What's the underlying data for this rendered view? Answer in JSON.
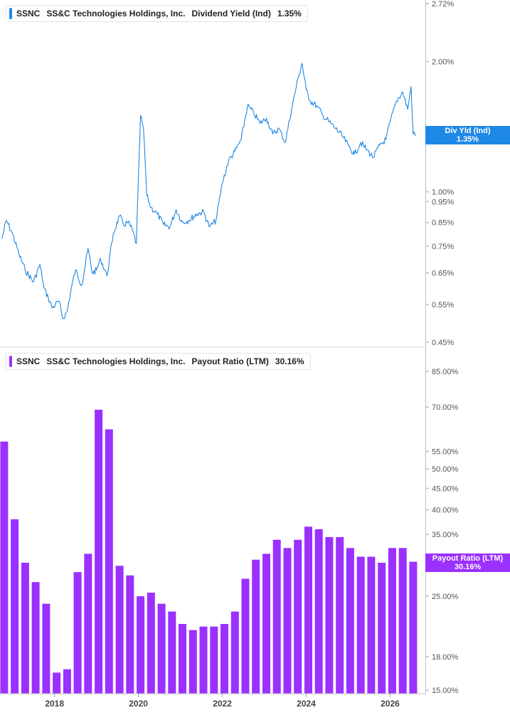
{
  "colors": {
    "yield": "#1e88e5",
    "payout": "#9b30ff",
    "grid": "#d9d9d9",
    "text": "#555555"
  },
  "chart_data": [
    {
      "type": "line",
      "legend": {
        "ticker": "SSNC",
        "company": "SS&C Technologies Holdings, Inc.",
        "metric": "Dividend Yield (Ind)",
        "value": "1.35%"
      },
      "tag": {
        "label": "Div Yld (Ind)",
        "value": "1.35%"
      },
      "y_scale": "log",
      "ylim": [
        0.45,
        2.72
      ],
      "y_ticks": [
        {
          "v": 2.72,
          "label": "2.72%"
        },
        {
          "v": 2.0,
          "label": "2.00%"
        },
        {
          "v": 1.0,
          "label": "1.00%"
        },
        {
          "v": 0.95,
          "label": "0.95%"
        },
        {
          "v": 0.85,
          "label": "0.85%"
        },
        {
          "v": 0.75,
          "label": "0.75%"
        },
        {
          "v": 0.65,
          "label": "0.65%"
        },
        {
          "v": 0.55,
          "label": "0.55%"
        },
        {
          "v": 0.45,
          "label": "0.45%"
        }
      ],
      "series": [
        {
          "x": [
            2016.75,
            2016.85,
            2017.0,
            2017.15,
            2017.3,
            2017.5,
            2017.65,
            2017.75,
            2017.85,
            2017.95,
            2018.1,
            2018.2,
            2018.3,
            2018.4,
            2018.5,
            2018.65,
            2018.8,
            2018.9,
            2019.0,
            2019.1,
            2019.25,
            2019.4,
            2019.55,
            2019.65,
            2019.75,
            2019.85,
            2019.95,
            2020.05,
            2020.12,
            2020.2,
            2020.3,
            2020.45,
            2020.6,
            2020.75,
            2020.9,
            2021.05,
            2021.2,
            2021.4,
            2021.55,
            2021.7,
            2021.85,
            2022.0,
            2022.15,
            2022.3,
            2022.45,
            2022.6,
            2022.75,
            2022.9,
            2023.05,
            2023.2,
            2023.35,
            2023.5,
            2023.65,
            2023.8,
            2023.9,
            2024.0,
            2024.1,
            2024.25,
            2024.4,
            2024.55,
            2024.7,
            2024.85,
            2025.0,
            2025.15,
            2025.3,
            2025.45,
            2025.6,
            2025.75,
            2025.9,
            2026.0,
            2026.15,
            2026.3,
            2026.42,
            2026.5,
            2026.55,
            2026.62
          ],
          "values": [
            0.78,
            0.86,
            0.8,
            0.72,
            0.66,
            0.62,
            0.68,
            0.6,
            0.57,
            0.54,
            0.56,
            0.51,
            0.53,
            0.6,
            0.66,
            0.61,
            0.74,
            0.65,
            0.66,
            0.7,
            0.64,
            0.8,
            0.88,
            0.84,
            0.85,
            0.82,
            0.76,
            1.5,
            1.4,
            0.98,
            0.92,
            0.89,
            0.84,
            0.83,
            0.91,
            0.85,
            0.86,
            0.89,
            0.9,
            0.83,
            0.86,
            1.05,
            1.18,
            1.24,
            1.32,
            1.58,
            1.52,
            1.44,
            1.48,
            1.36,
            1.4,
            1.3,
            1.55,
            1.82,
            1.98,
            1.72,
            1.62,
            1.58,
            1.5,
            1.45,
            1.4,
            1.35,
            1.28,
            1.22,
            1.3,
            1.25,
            1.2,
            1.28,
            1.32,
            1.45,
            1.62,
            1.7,
            1.55,
            1.75,
            1.36,
            1.35
          ]
        }
      ]
    },
    {
      "type": "bar",
      "legend": {
        "ticker": "SSNC",
        "company": "SS&C Technologies Holdings, Inc.",
        "metric": "Payout Ratio (LTM)",
        "value": "30.16%"
      },
      "tag": {
        "label": "Payout Ratio (LTM)",
        "value": "30.16%"
      },
      "y_scale": "log",
      "ylim": [
        15,
        85
      ],
      "y_ticks": [
        {
          "v": 85,
          "label": "85.00%"
        },
        {
          "v": 70,
          "label": "70.00%"
        },
        {
          "v": 55,
          "label": "55.00%"
        },
        {
          "v": 50,
          "label": "50.00%"
        },
        {
          "v": 45,
          "label": "45.00%"
        },
        {
          "v": 40,
          "label": "40.00%"
        },
        {
          "v": 35,
          "label": "35.00%"
        },
        {
          "v": 25,
          "label": "25.00%"
        },
        {
          "v": 18,
          "label": "18.00%"
        },
        {
          "v": 15,
          "label": "15.00%"
        }
      ],
      "series": [
        {
          "x": [
            2016.8,
            2017.05,
            2017.3,
            2017.55,
            2017.8,
            2018.05,
            2018.3,
            2018.55,
            2018.8,
            2019.05,
            2019.3,
            2019.55,
            2019.8,
            2020.05,
            2020.3,
            2020.55,
            2020.8,
            2021.05,
            2021.3,
            2021.55,
            2021.8,
            2022.05,
            2022.3,
            2022.55,
            2022.8,
            2023.05,
            2023.3,
            2023.55,
            2023.8,
            2024.05,
            2024.3,
            2024.55,
            2024.8,
            2025.05,
            2025.3,
            2025.55,
            2025.8,
            2026.05,
            2026.3,
            2026.55
          ],
          "values": [
            58,
            38,
            30,
            27,
            24,
            16.5,
            16.8,
            28.5,
            31.5,
            69,
            62,
            29.5,
            28,
            25,
            25.5,
            24,
            23,
            21.5,
            20.8,
            21.2,
            21.2,
            21.5,
            23,
            27.5,
            30.5,
            31.5,
            34,
            32.5,
            34,
            36.5,
            36,
            34.5,
            34.5,
            32.5,
            31,
            31,
            30,
            32.5,
            32.5,
            30.16
          ]
        }
      ]
    }
  ],
  "x_axis": {
    "ticks": [
      {
        "v": 2018,
        "label": "2018"
      },
      {
        "v": 2020,
        "label": "2020"
      },
      {
        "v": 2022,
        "label": "2022"
      },
      {
        "v": 2024,
        "label": "2024"
      },
      {
        "v": 2026,
        "label": "2026"
      }
    ]
  }
}
